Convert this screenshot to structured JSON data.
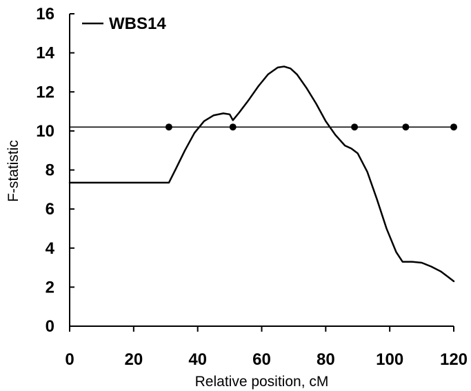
{
  "chart_data": {
    "type": "line",
    "xlabel": "Relative position, cM",
    "ylabel": "F-statistic",
    "xlim": [
      0,
      120
    ],
    "ylim": [
      0,
      16
    ],
    "x_ticks": [
      "0",
      "20",
      "40",
      "60",
      "80",
      "100",
      "120"
    ],
    "y_ticks": [
      "0",
      "2",
      "4",
      "6",
      "8",
      "10",
      "12",
      "14",
      "16"
    ],
    "grid": false,
    "legend_position": "top-left",
    "series": [
      {
        "name": "WBS14",
        "color": "#000000",
        "x": [
          0,
          10,
          20,
          31,
          33,
          36,
          39,
          42,
          45,
          48,
          50,
          51,
          53,
          56,
          59,
          62,
          65,
          67,
          69,
          71,
          74,
          77,
          80,
          83,
          86,
          88,
          90,
          93,
          96,
          99,
          102,
          104,
          105,
          107,
          110,
          113,
          116,
          118,
          120
        ],
        "y": [
          7.35,
          7.35,
          7.35,
          7.35,
          8.0,
          9.0,
          9.9,
          10.5,
          10.8,
          10.9,
          10.85,
          10.55,
          10.95,
          11.6,
          12.3,
          12.9,
          13.25,
          13.3,
          13.2,
          12.9,
          12.2,
          11.4,
          10.5,
          9.8,
          9.25,
          9.1,
          8.85,
          7.9,
          6.5,
          5.0,
          3.8,
          3.3,
          3.3,
          3.3,
          3.25,
          3.05,
          2.8,
          2.55,
          2.3
        ]
      }
    ],
    "threshold": {
      "y": 10.2,
      "x_range": [
        0,
        120
      ]
    },
    "markers": {
      "x": [
        31,
        51,
        89,
        105,
        120
      ],
      "y": [
        10.2,
        10.2,
        10.2,
        10.2,
        10.2
      ]
    }
  }
}
